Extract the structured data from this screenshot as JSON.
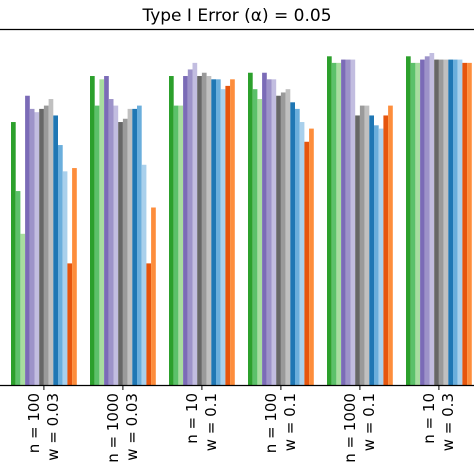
{
  "chart_data": {
    "type": "bar",
    "title": "Type I Error (α) = 0.05",
    "categories": [
      [
        "n = 100",
        "w = 0.03"
      ],
      [
        "n = 1000",
        "w = 0.03"
      ],
      [
        "n = 10",
        "w = 0.1"
      ],
      [
        "n = 100",
        "w = 0.1"
      ],
      [
        "n = 1000",
        "w = 0.1"
      ],
      [
        "n = 10",
        "w = 0.3"
      ]
    ],
    "ylim": [
      0,
      1.08
    ],
    "xlabel": "",
    "ylabel": "",
    "grid": false,
    "series": [
      {
        "color": "#2ca02c",
        "values": [
          0.8,
          0.94,
          0.94,
          0.95,
          1.0,
          1.0
        ]
      },
      {
        "color": "#5cc16a",
        "values": [
          0.59,
          0.85,
          0.85,
          0.9,
          0.98,
          0.98
        ]
      },
      {
        "color": "#a8dd9f",
        "values": [
          0.46,
          0.93,
          0.85,
          0.87,
          0.98,
          0.98
        ]
      },
      {
        "color": "#7b6bb7",
        "values": [
          0.88,
          0.94,
          0.94,
          0.95,
          0.99,
          0.99
        ]
      },
      {
        "color": "#9d93c9",
        "values": [
          0.84,
          0.87,
          0.96,
          0.93,
          0.99,
          1.0
        ]
      },
      {
        "color": "#c2bde0",
        "values": [
          0.83,
          0.85,
          0.98,
          0.93,
          0.99,
          1.01
        ]
      },
      {
        "color": "#676767",
        "values": [
          0.84,
          0.8,
          0.94,
          0.88,
          0.82,
          0.99
        ]
      },
      {
        "color": "#9a9a9a",
        "values": [
          0.85,
          0.81,
          0.95,
          0.89,
          0.85,
          0.99
        ]
      },
      {
        "color": "#c0c0c0",
        "values": [
          0.87,
          0.84,
          0.94,
          0.9,
          0.85,
          0.99
        ]
      },
      {
        "color": "#1f77b4",
        "values": [
          0.82,
          0.84,
          0.93,
          0.86,
          0.82,
          0.99
        ]
      },
      {
        "color": "#6aaedc",
        "values": [
          0.73,
          0.85,
          0.93,
          0.84,
          0.79,
          0.99
        ]
      },
      {
        "color": "#a9d0ec",
        "values": [
          0.65,
          0.67,
          0.9,
          0.8,
          0.78,
          0.99
        ]
      },
      {
        "color": "#e6550d",
        "values": [
          0.37,
          0.37,
          0.91,
          0.74,
          0.82,
          0.98
        ]
      },
      {
        "color": "#fd8d3c",
        "values": [
          0.66,
          0.54,
          0.93,
          0.78,
          0.85,
          0.98
        ]
      }
    ]
  }
}
